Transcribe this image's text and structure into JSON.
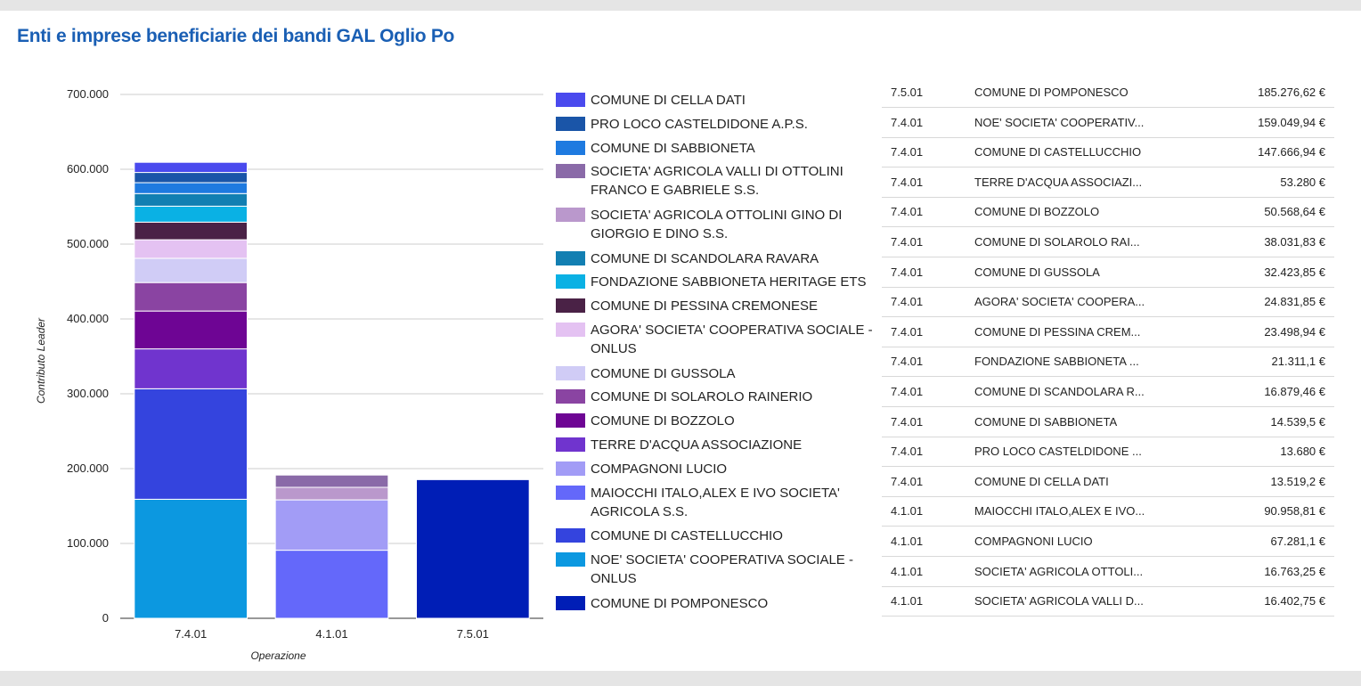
{
  "title": "Enti e imprese beneficiarie dei bandi GAL Oglio Po",
  "chart_data": {
    "type": "bar",
    "stacked": true,
    "categories": [
      "7.4.01",
      "4.1.01",
      "7.5.01"
    ],
    "xlabel": "Operazione",
    "ylabel": "Contributo Leader",
    "ylim": [
      0,
      700000
    ],
    "yticks": [
      0,
      100000,
      200000,
      300000,
      400000,
      500000,
      600000,
      700000
    ],
    "ytick_labels": [
      "0",
      "100.000",
      "200.000",
      "300.000",
      "400.000",
      "500.000",
      "600.000",
      "700.000"
    ],
    "legend_position": "right",
    "series": [
      {
        "name": "COMUNE DI CELLA DATI",
        "color": "#4a4aee",
        "values": [
          13519.2,
          0,
          0
        ]
      },
      {
        "name": "PRO LOCO CASTELDIDONE A.P.S.",
        "color": "#1a55a8",
        "values": [
          13680,
          0,
          0
        ]
      },
      {
        "name": "COMUNE DI SABBIONETA",
        "color": "#1e7ae0",
        "values": [
          14539.5,
          0,
          0
        ]
      },
      {
        "name": "SOCIETA' AGRICOLA VALLI DI OTTOLINI FRANCO E GABRIELE S.S.",
        "color": "#8a6aa8",
        "values": [
          0,
          16402.75,
          0
        ]
      },
      {
        "name": "SOCIETA' AGRICOLA OTTOLINI GINO DI GIORGIO E DINO S.S.",
        "color": "#ba98cc",
        "values": [
          0,
          16763.25,
          0
        ]
      },
      {
        "name": "COMUNE DI SCANDOLARA RAVARA",
        "color": "#127fb2",
        "values": [
          16879.46,
          0,
          0
        ]
      },
      {
        "name": "FONDAZIONE SABBIONETA HERITAGE ETS",
        "color": "#0ab1e4",
        "values": [
          21311.1,
          0,
          0
        ]
      },
      {
        "name": "COMUNE DI PESSINA CREMONESE",
        "color": "#4a2246",
        "values": [
          23498.94,
          0,
          0
        ]
      },
      {
        "name": "AGORA' SOCIETA' COOPERATIVA SOCIALE - ONLUS",
        "color": "#e4c2f2",
        "values": [
          24831.85,
          0,
          0
        ]
      },
      {
        "name": "COMUNE DI GUSSOLA",
        "color": "#d0ccf6",
        "values": [
          32423.85,
          0,
          0
        ]
      },
      {
        "name": "COMUNE DI SOLAROLO RAINERIO",
        "color": "#8a44a2",
        "values": [
          38031.83,
          0,
          0
        ]
      },
      {
        "name": "COMUNE DI BOZZOLO",
        "color": "#6e0594",
        "values": [
          50568.64,
          0,
          0
        ]
      },
      {
        "name": "TERRE D'ACQUA ASSOCIAZIONE",
        "color": "#7034ce",
        "values": [
          53280,
          0,
          0
        ]
      },
      {
        "name": "COMPAGNONI LUCIO",
        "color": "#a29cf6",
        "values": [
          0,
          67281.1,
          0
        ]
      },
      {
        "name": "MAIOCCHI ITALO,ALEX E IVO SOCIETA' AGRICOLA S.S.",
        "color": "#6468fa",
        "values": [
          0,
          90958.81,
          0
        ]
      },
      {
        "name": "COMUNE DI CASTELLUCCHIO",
        "color": "#3444de",
        "values": [
          147666.94,
          0,
          0
        ]
      },
      {
        "name": "NOE' SOCIETA' COOPERATIVA SOCIALE - ONLUS",
        "color": "#0c98e0",
        "values": [
          159049.94,
          0,
          0
        ]
      },
      {
        "name": "COMUNE DI POMPONESCO",
        "color": "#001eb6",
        "values": [
          0,
          0,
          185276.62
        ]
      }
    ]
  },
  "table": {
    "rows": [
      {
        "operazione": "7.5.01",
        "beneficiario": "COMUNE DI POMPONESCO",
        "contributo": "185.276,62 €"
      },
      {
        "operazione": "7.4.01",
        "beneficiario": "NOE' SOCIETA' COOPERATIV...",
        "contributo": "159.049,94 €"
      },
      {
        "operazione": "7.4.01",
        "beneficiario": "COMUNE DI CASTELLUCCHIO",
        "contributo": "147.666,94 €"
      },
      {
        "operazione": "7.4.01",
        "beneficiario": "TERRE D'ACQUA ASSOCIAZI...",
        "contributo": "53.280 €"
      },
      {
        "operazione": "7.4.01",
        "beneficiario": "COMUNE DI BOZZOLO",
        "contributo": "50.568,64 €"
      },
      {
        "operazione": "7.4.01",
        "beneficiario": "COMUNE DI SOLAROLO RAI...",
        "contributo": "38.031,83 €"
      },
      {
        "operazione": "7.4.01",
        "beneficiario": "COMUNE DI GUSSOLA",
        "contributo": "32.423,85 €"
      },
      {
        "operazione": "7.4.01",
        "beneficiario": "AGORA' SOCIETA' COOPERA...",
        "contributo": "24.831,85 €"
      },
      {
        "operazione": "7.4.01",
        "beneficiario": "COMUNE DI PESSINA CREM...",
        "contributo": "23.498,94 €"
      },
      {
        "operazione": "7.4.01",
        "beneficiario": "FONDAZIONE SABBIONETA ...",
        "contributo": "21.311,1 €"
      },
      {
        "operazione": "7.4.01",
        "beneficiario": "COMUNE DI SCANDOLARA R...",
        "contributo": "16.879,46 €"
      },
      {
        "operazione": "7.4.01",
        "beneficiario": "COMUNE DI SABBIONETA",
        "contributo": "14.539,5 €"
      },
      {
        "operazione": "7.4.01",
        "beneficiario": "PRO LOCO CASTELDIDONE ...",
        "contributo": "13.680 €"
      },
      {
        "operazione": "7.4.01",
        "beneficiario": "COMUNE DI CELLA DATI",
        "contributo": "13.519,2 €"
      },
      {
        "operazione": "4.1.01",
        "beneficiario": "MAIOCCHI ITALO,ALEX E IVO...",
        "contributo": "90.958,81 €"
      },
      {
        "operazione": "4.1.01",
        "beneficiario": "COMPAGNONI LUCIO",
        "contributo": "67.281,1 €"
      },
      {
        "operazione": "4.1.01",
        "beneficiario": "SOCIETA' AGRICOLA OTTOLI...",
        "contributo": "16.763,25 €"
      },
      {
        "operazione": "4.1.01",
        "beneficiario": "SOCIETA' AGRICOLA VALLI D...",
        "contributo": "16.402,75 €"
      }
    ]
  }
}
